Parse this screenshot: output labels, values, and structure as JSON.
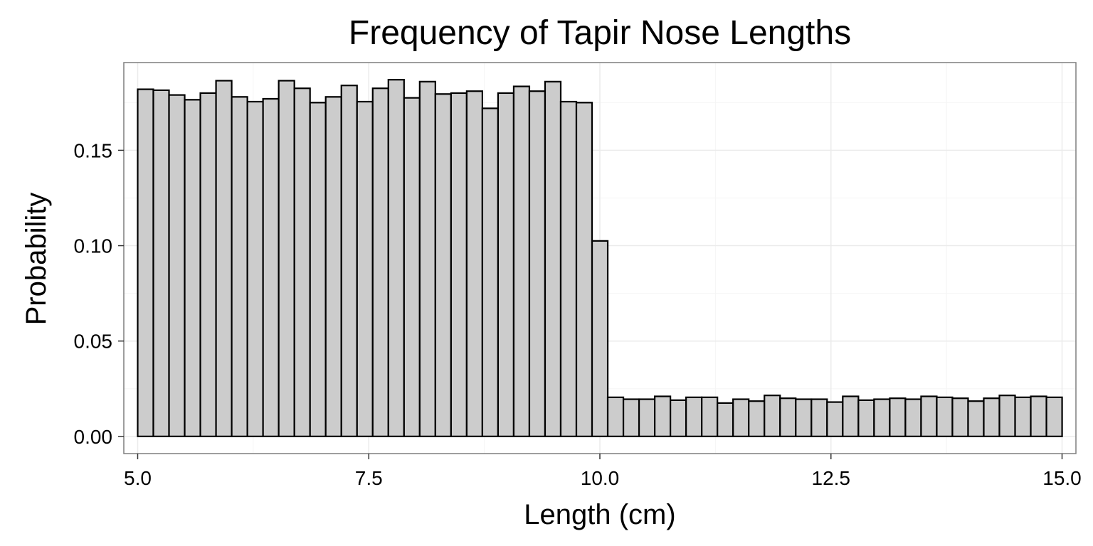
{
  "chart_data": {
    "type": "bar",
    "title": "Frequency of Tapir Nose Lengths",
    "xlabel": "Length (cm)",
    "ylabel": "Probability",
    "xlim": [
      4.85,
      15.15
    ],
    "ylim": [
      -0.009,
      0.196
    ],
    "x_ticks": [
      5.0,
      7.5,
      10.0,
      12.5,
      15.0
    ],
    "x_tick_labels": [
      "5.0",
      "7.5",
      "10.0",
      "12.5",
      "15.0"
    ],
    "y_ticks": [
      0.0,
      0.05,
      0.1,
      0.15
    ],
    "y_tick_labels": [
      "0.00",
      "0.05",
      "0.10",
      "0.15"
    ],
    "grid": true,
    "bin_start": 5.0,
    "bin_width": 0.1695,
    "values": [
      0.182,
      0.1815,
      0.179,
      0.1765,
      0.18,
      0.1865,
      0.178,
      0.1755,
      0.177,
      0.1865,
      0.1825,
      0.175,
      0.178,
      0.184,
      0.1755,
      0.1825,
      0.187,
      0.1775,
      0.186,
      0.1795,
      0.18,
      0.181,
      0.172,
      0.18,
      0.1835,
      0.181,
      0.186,
      0.1755,
      0.175,
      0.1025,
      0.0205,
      0.0195,
      0.0195,
      0.021,
      0.019,
      0.0205,
      0.0205,
      0.0175,
      0.0195,
      0.0185,
      0.0215,
      0.02,
      0.0195,
      0.0195,
      0.018,
      0.021,
      0.019,
      0.0195,
      0.02,
      0.0195,
      0.021,
      0.0205,
      0.02,
      0.0185,
      0.02,
      0.0215,
      0.0205,
      0.021,
      0.0205
    ],
    "bar_fill": "#cccccc",
    "bar_stroke": "#000000",
    "panel_border": "#7f7f7f",
    "grid_major": "#ebebeb",
    "grid_minor": "#f5f5f5"
  }
}
